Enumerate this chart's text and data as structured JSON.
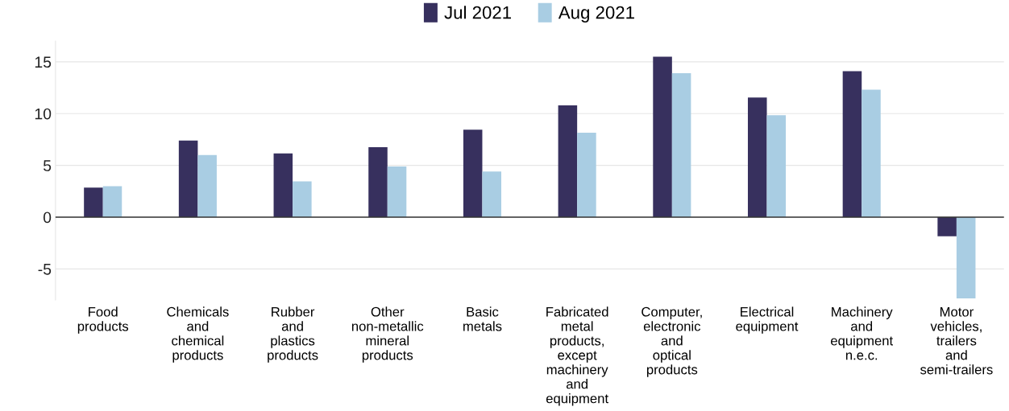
{
  "chart_data": {
    "type": "bar",
    "categories": [
      "Food\nproducts",
      "Chemicals\nand\nchemical\nproducts",
      "Rubber\nand\nplastics\nproducts",
      "Other\nnon-metallic\nmineral\nproducts",
      "Basic\nmetals",
      "Fabricated\nmetal\nproducts,\nexcept\nmachinery\nand\nequipment",
      "Computer,\nelectronic\nand\noptical\nproducts",
      "Electrical\nequipment",
      "Machinery\nand\nequipment\nn.e.c.",
      "Motor\nvehicles,\ntrailers\nand\nsemi-trailers"
    ],
    "series": [
      {
        "name": "Jul 2021",
        "color": "#37305e",
        "values": [
          2.85,
          7.4,
          6.15,
          6.75,
          8.45,
          10.8,
          15.5,
          11.55,
          14.1,
          -1.85
        ]
      },
      {
        "name": "Aug 2021",
        "color": "#a9cde3",
        "values": [
          3.0,
          6.0,
          3.45,
          4.9,
          4.4,
          8.15,
          13.9,
          9.85,
          12.3,
          -7.85
        ]
      }
    ],
    "ylim": [
      -8,
      17
    ],
    "yticks": [
      {
        "value": -5,
        "label": "-5"
      },
      0,
      5,
      10,
      15
    ],
    "grid": "y",
    "legend": "top"
  }
}
